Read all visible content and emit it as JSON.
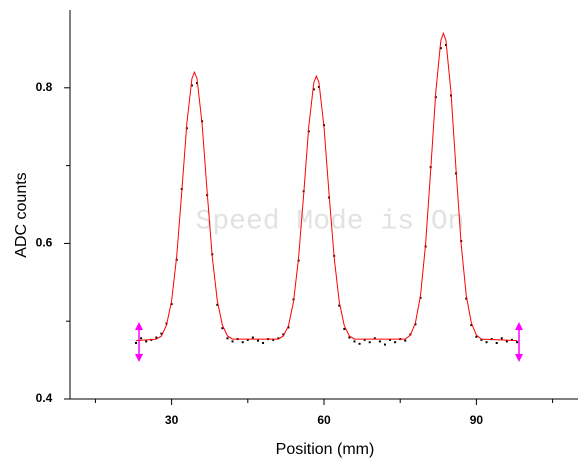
{
  "chart_data": {
    "type": "scatter",
    "xlabel": "Position (mm)",
    "ylabel": "ADC counts",
    "annotation": "Speed Mode is On",
    "xlim": [
      10,
      110
    ],
    "ylim": [
      0.4,
      0.9
    ],
    "xticks": [
      30,
      60,
      90
    ],
    "xminorticks": [
      15,
      45,
      75,
      105
    ],
    "yticks": [
      0.4,
      0.6,
      0.8
    ],
    "yminorticks": [
      0.5,
      0.7
    ],
    "series": [
      {
        "type": "scatter",
        "color": "#000000",
        "x": [
          23,
          24,
          25,
          26,
          27,
          28,
          29,
          30,
          31,
          32,
          33,
          34,
          35,
          36,
          37,
          38,
          39,
          40,
          41,
          42,
          43,
          44,
          45,
          46,
          47,
          48,
          49,
          50,
          51,
          52,
          53,
          54,
          55,
          56,
          57,
          58,
          59,
          60,
          61,
          62,
          63,
          64,
          65,
          66,
          67,
          68,
          69,
          70,
          71,
          72,
          73,
          74,
          75,
          76,
          77,
          78,
          79,
          80,
          81,
          82,
          83,
          84,
          85,
          86,
          87,
          88,
          89,
          90,
          91,
          92,
          93,
          94,
          95,
          96,
          97,
          98
        ],
        "values": [
          0.472,
          0.478,
          0.474,
          0.476,
          0.479,
          0.484,
          0.497,
          0.522,
          0.579,
          0.67,
          0.748,
          0.803,
          0.806,
          0.757,
          0.662,
          0.586,
          0.521,
          0.491,
          0.478,
          0.474,
          0.477,
          0.473,
          0.476,
          0.479,
          0.475,
          0.472,
          0.477,
          0.476,
          0.478,
          0.483,
          0.492,
          0.528,
          0.578,
          0.667,
          0.744,
          0.798,
          0.801,
          0.752,
          0.659,
          0.584,
          0.52,
          0.49,
          0.479,
          0.474,
          0.471,
          0.476,
          0.473,
          0.478,
          0.474,
          0.47,
          0.476,
          0.473,
          0.477,
          0.475,
          0.483,
          0.496,
          0.53,
          0.596,
          0.698,
          0.788,
          0.851,
          0.855,
          0.79,
          0.69,
          0.603,
          0.529,
          0.495,
          0.48,
          0.476,
          0.473,
          0.477,
          0.472,
          0.478,
          0.474,
          0.476,
          0.473
        ]
      },
      {
        "type": "line",
        "color": "#ff0000",
        "x": [
          23,
          27,
          28,
          29,
          30,
          31,
          32,
          33,
          34,
          34.5,
          35,
          36,
          37,
          38,
          39,
          40,
          41,
          42,
          51,
          52,
          53,
          54,
          55,
          56,
          57,
          58,
          58.5,
          59,
          60,
          61,
          62,
          63,
          64,
          65,
          66,
          76,
          77,
          78,
          79,
          80,
          81,
          82,
          83,
          83.5,
          84,
          85,
          86,
          87,
          88,
          89,
          90,
          91,
          98
        ],
        "values": [
          0.475,
          0.477,
          0.481,
          0.495,
          0.526,
          0.583,
          0.666,
          0.754,
          0.812,
          0.82,
          0.812,
          0.754,
          0.666,
          0.583,
          0.526,
          0.495,
          0.481,
          0.477,
          0.477,
          0.481,
          0.494,
          0.525,
          0.582,
          0.663,
          0.75,
          0.807,
          0.815,
          0.807,
          0.75,
          0.663,
          0.582,
          0.525,
          0.494,
          0.481,
          0.477,
          0.477,
          0.482,
          0.498,
          0.533,
          0.599,
          0.694,
          0.794,
          0.861,
          0.87,
          0.861,
          0.794,
          0.694,
          0.599,
          0.533,
          0.498,
          0.482,
          0.477,
          0.475
        ]
      }
    ]
  }
}
